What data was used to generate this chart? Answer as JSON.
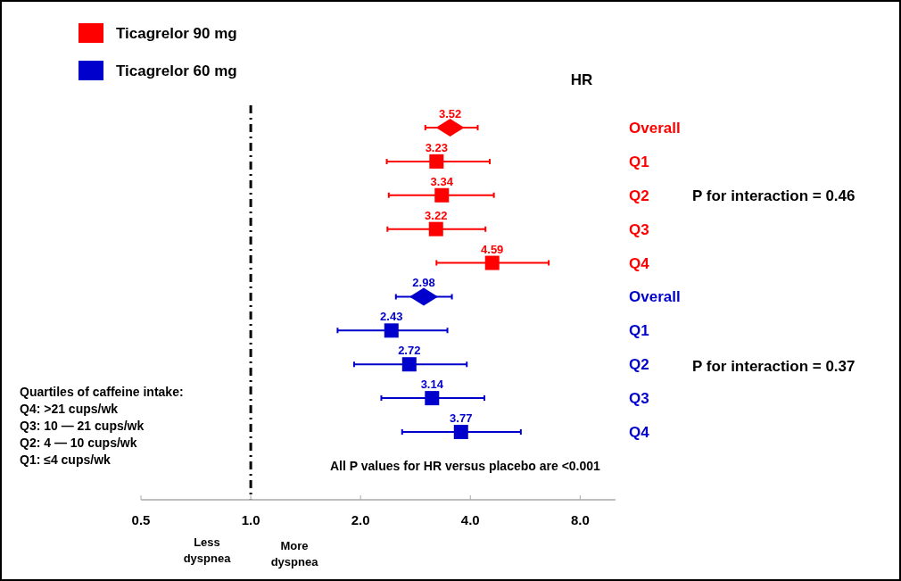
{
  "chart_data": {
    "type": "scatter",
    "orientation": "horizontal",
    "log": "x",
    "categories": [
      "Overall",
      "Q1",
      "Q2",
      "Q3",
      "Q4",
      "Overall",
      "Q1",
      "Q2",
      "Q3",
      "Q4"
    ],
    "series": [
      {
        "name": "Ticagrelor 90 mg",
        "color": "#ff0000",
        "marker": "square",
        "values": [
          null,
          3.23,
          3.34,
          3.22,
          4.59,
          null,
          null,
          null,
          null,
          null
        ],
        "errors": [
          null,
          [
            2.36,
            4.52
          ],
          [
            2.39,
            4.64
          ],
          [
            2.37,
            4.4
          ],
          [
            3.23,
            6.56
          ],
          null,
          null,
          null,
          null,
          null
        ],
        "value_labels": [
          null,
          "3.23",
          "3.34",
          "3.22",
          "4.59",
          null,
          null,
          null,
          null,
          null
        ]
      },
      {
        "color": "#ff0000",
        "marker": "diamond",
        "values": [
          3.52,
          null,
          null,
          null,
          null,
          null,
          null,
          null,
          null,
          null
        ],
        "errors": [
          [
            3.01,
            4.19
          ],
          null,
          null,
          null,
          null,
          null,
          null,
          null,
          null,
          null
        ],
        "value_labels": [
          "3.52",
          null,
          null,
          null,
          null,
          null,
          null,
          null,
          null,
          null
        ]
      },
      {
        "name": "Ticagrelor 60 mg",
        "color": "#0000cc",
        "marker": "square",
        "values": [
          null,
          null,
          null,
          null,
          null,
          null,
          2.43,
          2.72,
          3.14,
          3.77
        ],
        "errors": [
          null,
          null,
          null,
          null,
          null,
          null,
          [
            1.73,
            3.46
          ],
          [
            1.92,
            3.91
          ],
          [
            2.28,
            4.37
          ],
          [
            2.6,
            5.5
          ]
        ],
        "value_labels": [
          null,
          null,
          null,
          null,
          null,
          null,
          "2.43",
          "2.72",
          "3.14",
          "3.77"
        ]
      },
      {
        "color": "#0000cc",
        "marker": "diamond",
        "values": [
          null,
          null,
          null,
          null,
          null,
          2.98,
          null,
          null,
          null,
          null
        ],
        "errors": [
          null,
          null,
          null,
          null,
          null,
          [
            2.5,
            3.56
          ],
          null,
          null,
          null,
          null
        ],
        "value_labels": [
          null,
          null,
          null,
          null,
          null,
          "2.98",
          null,
          null,
          null,
          null
        ]
      }
    ],
    "xlim": [
      0.5,
      10
    ],
    "xticks": [
      {
        "value": 0.5,
        "label": "0.5"
      },
      {
        "value": 1,
        "label": "1.0"
      },
      {
        "value": 2,
        "label": "2.0"
      },
      {
        "value": 4,
        "label": "4.0"
      },
      {
        "value": 8,
        "label": "8.0"
      }
    ],
    "tick_labels": "x",
    "grid": false,
    "legend": "top left",
    "ref_lines": [
      {
        "axis": "x",
        "value": 1,
        "color": "#000000",
        "line_style": "dashdot"
      }
    ],
    "annotations": [
      "HR",
      "P for interaction = 0.46",
      "P for interaction = 0.37",
      "Quartiles of caffeine intake:\nQ4: >21 cups/wk\nQ3: 10 — 21 cups/wk\nQ2: 4 — 10 cups/wk\nQ1: ≤4 cups/wk",
      "All P values for HR versus placebo are <0.001",
      "Less\ndyspnea",
      "More\ndyspnea"
    ]
  }
}
